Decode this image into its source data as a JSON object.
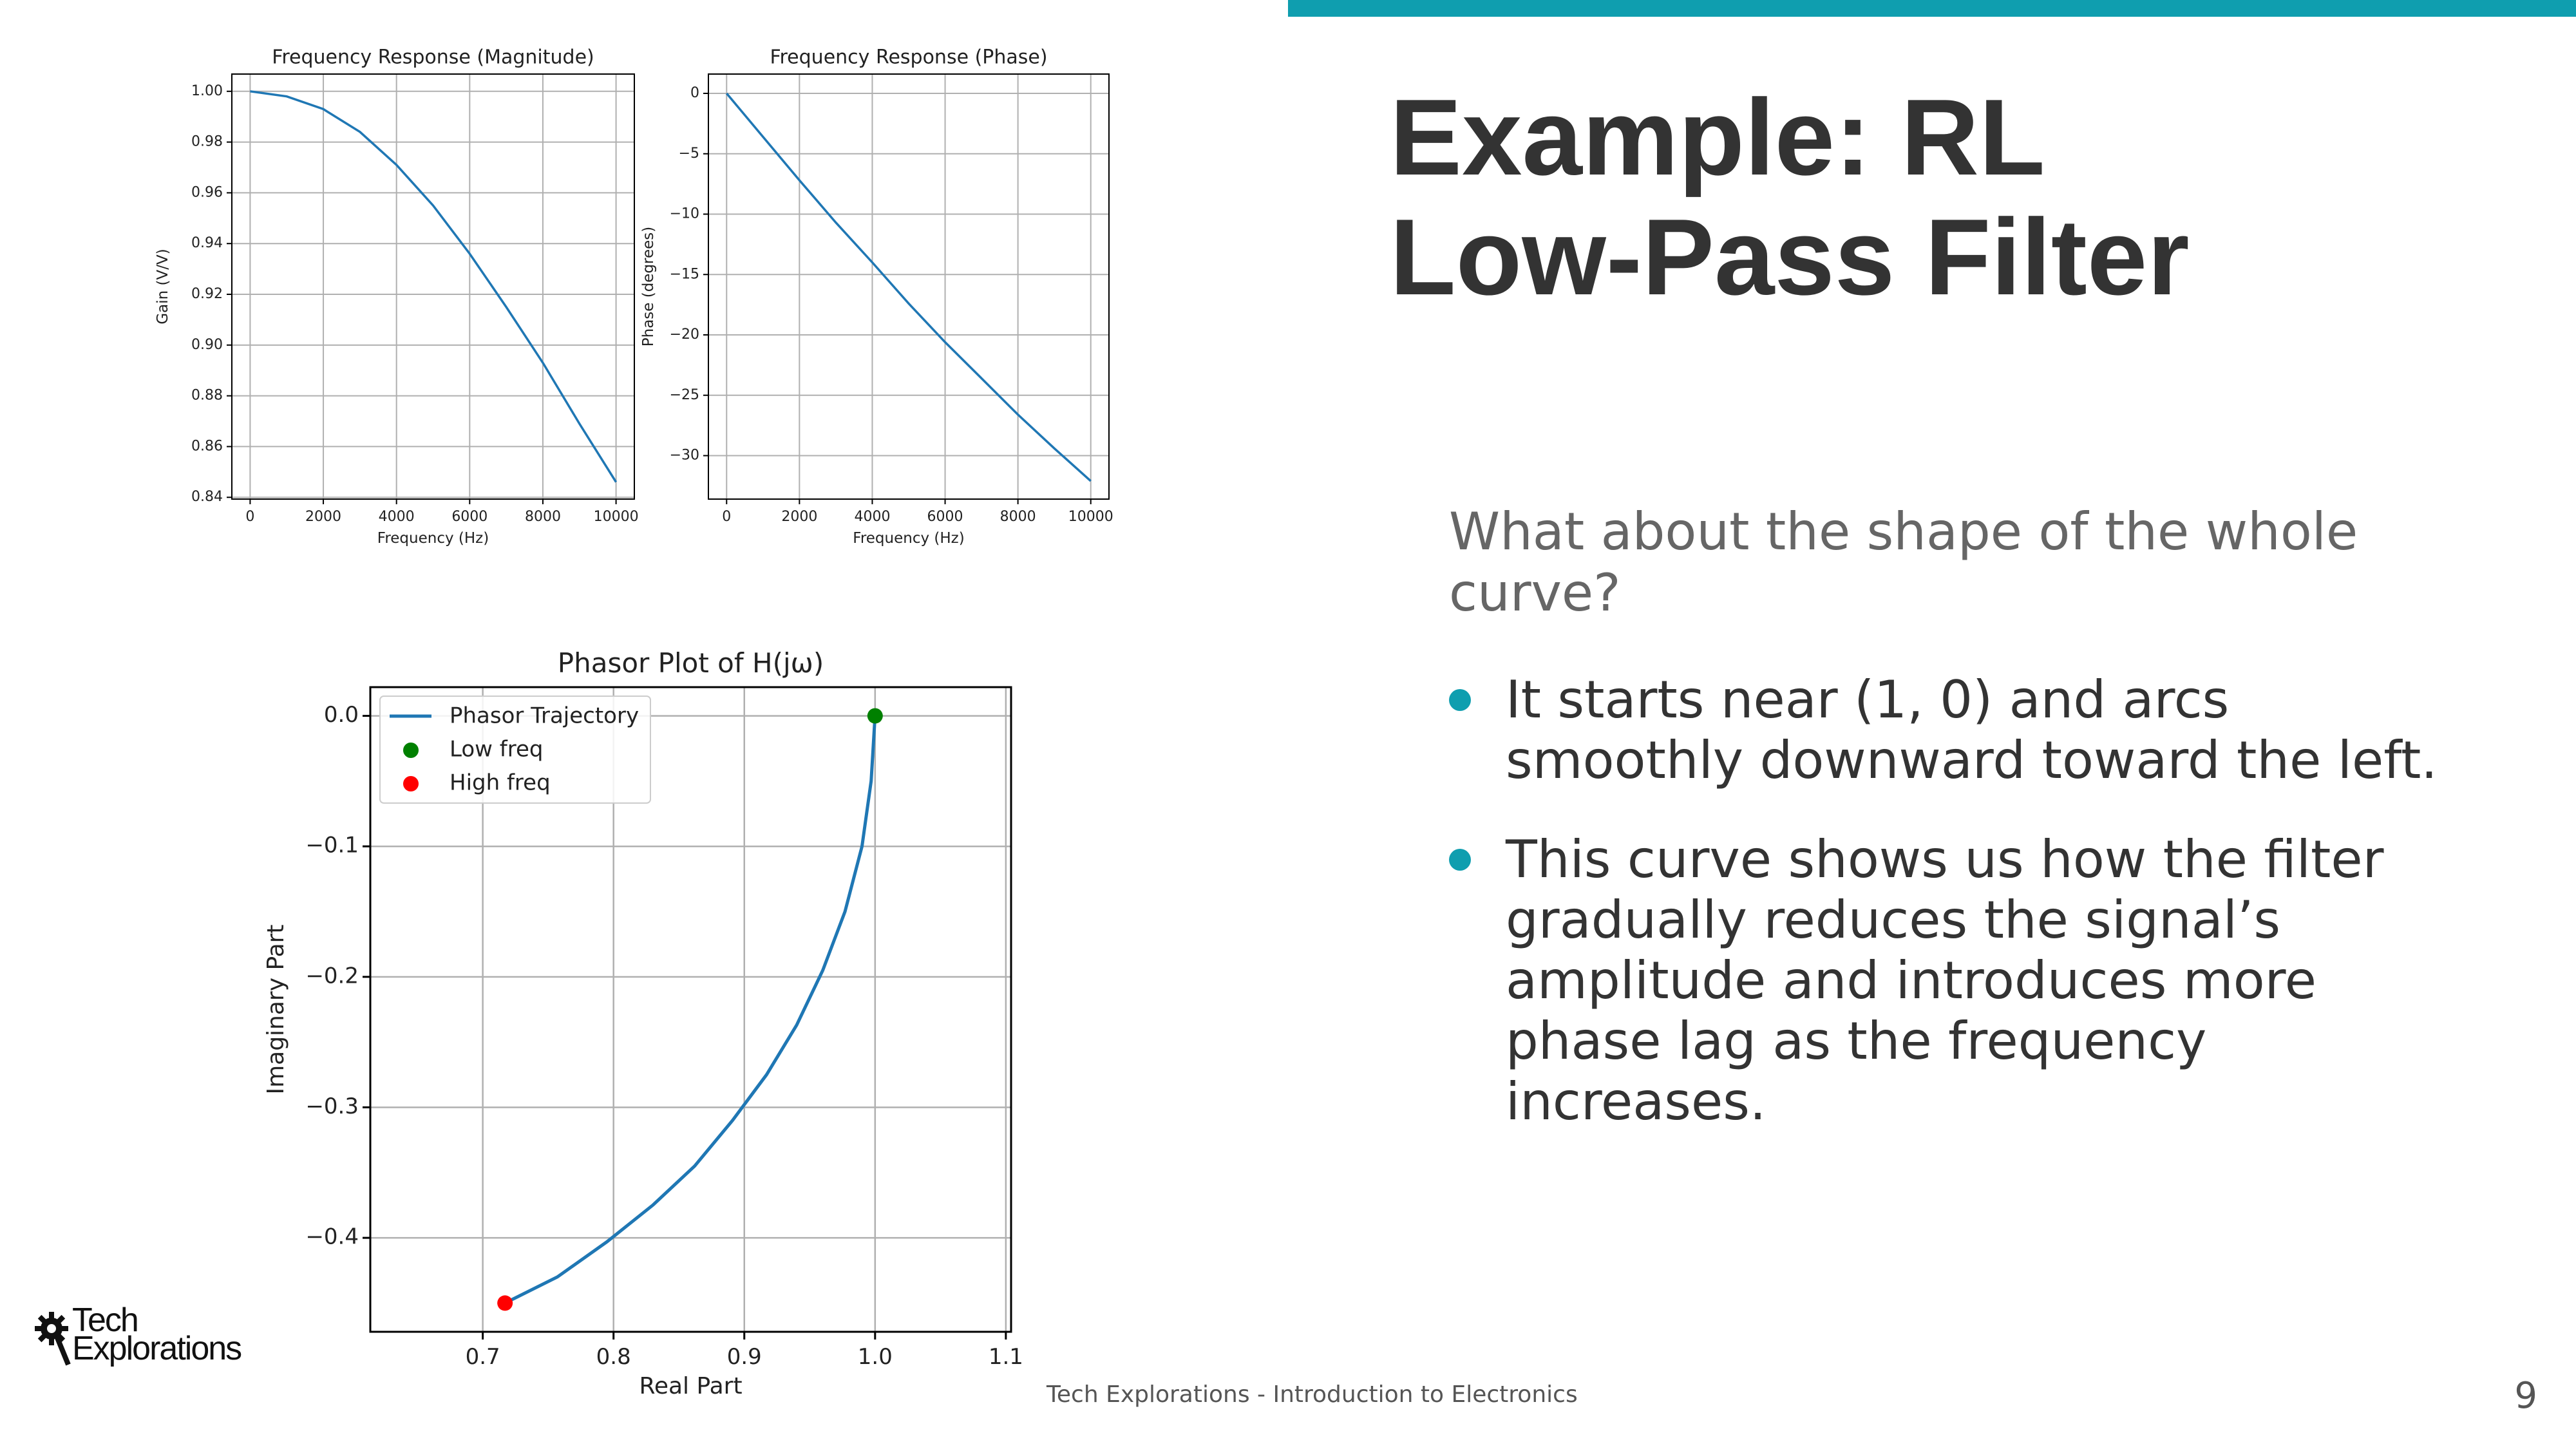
{
  "slide": {
    "title_line1": "Example: RL",
    "title_line2": "Low-Pass Filter",
    "question": "What about the shape of the whole curve?",
    "bullets": [
      "It starts near (1, 0) and arcs smoothly downward toward the left.",
      "This curve shows us how the filter gradually reduces the signal’s amplitude and introduces more phase lag as the frequency increases."
    ],
    "footer": "Tech Explorations - Introduction to Electronics",
    "page_number": "9",
    "logo_line1": "Tech",
    "logo_line2": "Explorations",
    "accent_color": "#0f9eaf"
  },
  "chart_data": [
    {
      "type": "line",
      "title": "Frequency Response (Magnitude)",
      "xlabel": "Frequency (Hz)",
      "ylabel": "Gain (V/V)",
      "xlim": [
        -500,
        10500
      ],
      "ylim": [
        0.8393,
        1.0068
      ],
      "xticks": [
        0,
        2000,
        4000,
        6000,
        8000,
        10000
      ],
      "yticks": [
        0.84,
        0.86,
        0.88,
        0.9,
        0.92,
        0.94,
        0.96,
        0.98,
        1.0
      ],
      "ytick_labels": [
        "0.84",
        "0.86",
        "0.88",
        "0.90",
        "0.92",
        "0.94",
        "0.96",
        "0.98",
        "1.00"
      ],
      "grid": true,
      "color": "#1f77b4",
      "x": [
        0,
        1000,
        2000,
        3000,
        4000,
        5000,
        6000,
        7000,
        8000,
        9000,
        10000
      ],
      "y": [
        1.0,
        0.998,
        0.993,
        0.984,
        0.971,
        0.955,
        0.936,
        0.915,
        0.893,
        0.869,
        0.846
      ]
    },
    {
      "type": "line",
      "title": "Frequency Response (Phase)",
      "xlabel": "Frequency (Hz)",
      "ylabel": "Phase (degrees)",
      "xlim": [
        -500,
        10500
      ],
      "ylim": [
        -33.6,
        1.6
      ],
      "xticks": [
        0,
        2000,
        4000,
        6000,
        8000,
        10000
      ],
      "yticks": [
        0,
        -5,
        -10,
        -15,
        -20,
        -25,
        -30
      ],
      "ytick_labels": [
        "0",
        "−5",
        "−10",
        "−15",
        "−20",
        "−25",
        "−30"
      ],
      "grid": true,
      "color": "#1f77b4",
      "x": [
        0,
        1000,
        2000,
        3000,
        4000,
        5000,
        6000,
        7000,
        8000,
        9000,
        10000
      ],
      "y": [
        0,
        -3.6,
        -7.2,
        -10.7,
        -14.0,
        -17.4,
        -20.6,
        -23.6,
        -26.6,
        -29.4,
        -32.1
      ]
    },
    {
      "type": "scatter",
      "title": "Phasor Plot of H(jω)",
      "xlabel": "Real Part",
      "ylabel": "Imaginary Part",
      "xlim": [
        0.614,
        1.104
      ],
      "ylim": [
        -0.472,
        0.022
      ],
      "xticks": [
        0.7,
        0.8,
        0.9,
        1.0,
        1.1
      ],
      "xtick_labels": [
        "0.7",
        "0.8",
        "0.9",
        "1.0",
        "1.1"
      ],
      "yticks": [
        0.0,
        -0.1,
        -0.2,
        -0.3,
        -0.4
      ],
      "ytick_labels": [
        "0.0",
        "−0.1",
        "−0.2",
        "−0.3",
        "−0.4"
      ],
      "grid": true,
      "legend_position": "upper-left",
      "series": [
        {
          "name": "Phasor Trajectory",
          "kind": "line",
          "color": "#1f77b4",
          "x": [
            1.0,
            0.997,
            0.99,
            0.977,
            0.96,
            0.94,
            0.917,
            0.891,
            0.862,
            0.83,
            0.795,
            0.757,
            0.717
          ],
          "y": [
            0.0,
            -0.05,
            -0.1,
            -0.15,
            -0.195,
            -0.237,
            -0.275,
            -0.31,
            -0.345,
            -0.375,
            -0.403,
            -0.43,
            -0.45
          ]
        },
        {
          "name": "Low freq",
          "kind": "point",
          "color": "#008000",
          "x": [
            1.0
          ],
          "y": [
            0.0
          ]
        },
        {
          "name": "High freq",
          "kind": "point",
          "color": "#ff0000",
          "x": [
            0.717
          ],
          "y": [
            -0.45
          ]
        }
      ]
    }
  ]
}
